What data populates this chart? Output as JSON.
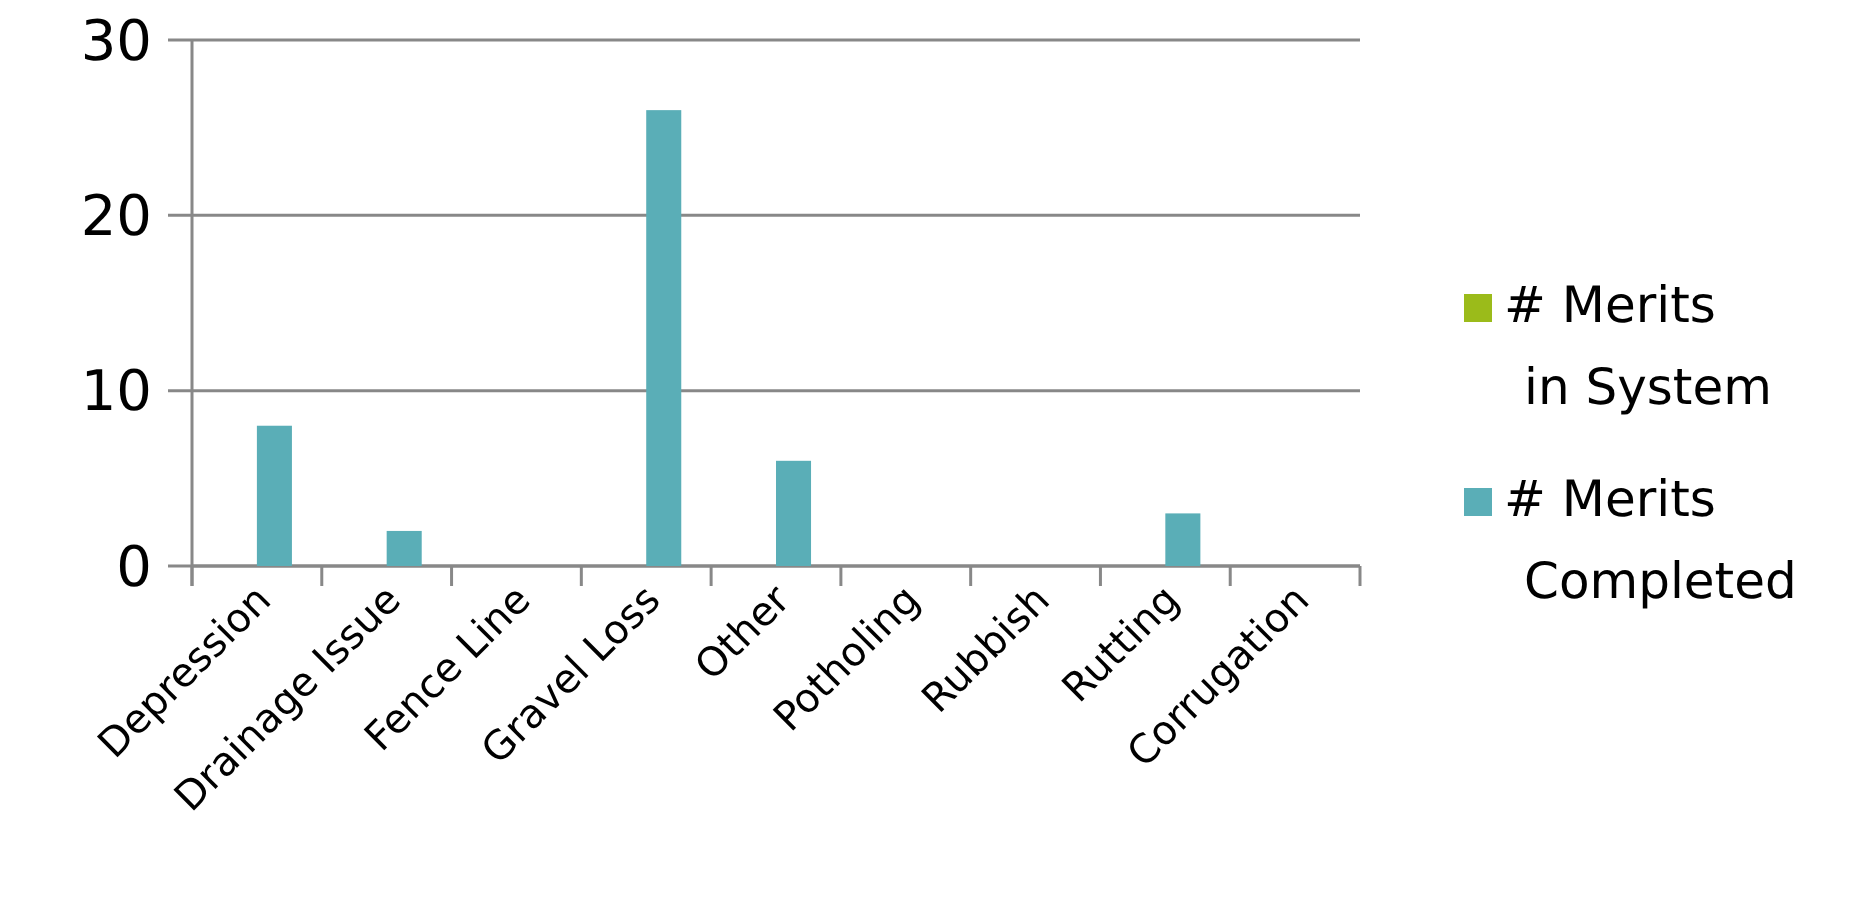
{
  "chart_data": {
    "type": "bar",
    "categories": [
      "Depression",
      "Drainage Issue",
      "Fence Line",
      "Gravel Loss",
      "Other",
      "Potholing",
      "Rubbish",
      "Rutting",
      "Corrugation"
    ],
    "series": [
      {
        "name": "# Merits in System",
        "color": "#9bbb1a",
        "values": [
          0,
          0,
          0,
          0,
          0,
          0,
          0,
          0,
          0
        ]
      },
      {
        "name": "# Merits Completed",
        "color": "#5aaeb7",
        "values": [
          8,
          2,
          0,
          26,
          6,
          0,
          0,
          3,
          0
        ]
      }
    ],
    "ylim": [
      0,
      30
    ],
    "yticks": [
      0,
      10,
      20,
      30
    ],
    "grid": "y",
    "legend": "right"
  }
}
